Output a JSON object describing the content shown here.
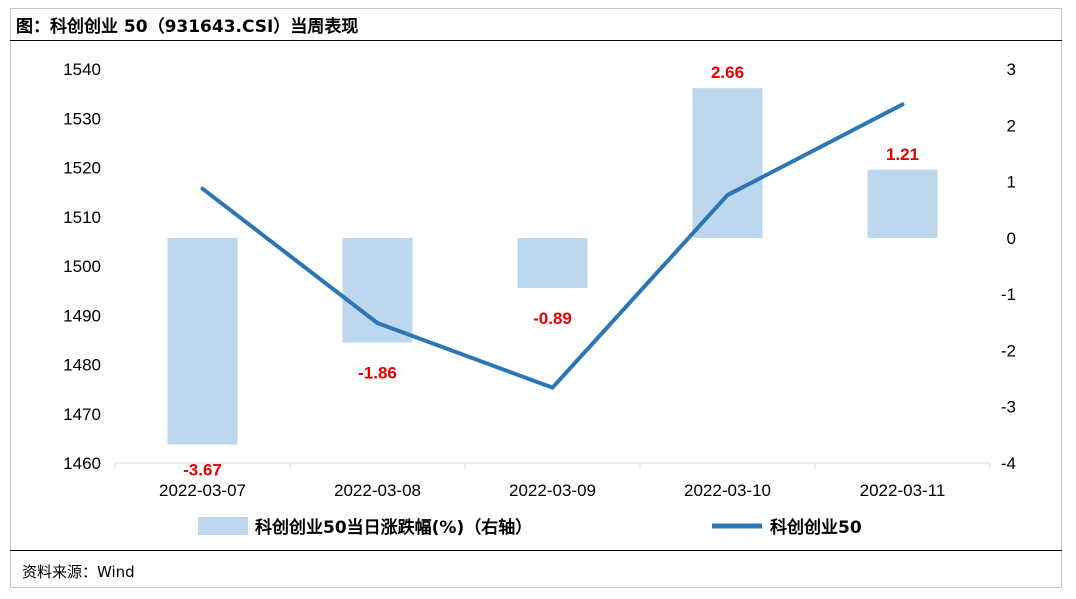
{
  "header": {
    "title": "图：科创创业 50（931643.CSI）当周表现"
  },
  "footer": {
    "source": "资料来源：Wind"
  },
  "chart_data": {
    "type": "bar+line",
    "categories": [
      "2022-03-07",
      "2022-03-08",
      "2022-03-09",
      "2022-03-10",
      "2022-03-11"
    ],
    "series": [
      {
        "name": "科创创业50当日涨跌幅(%)（右轴）",
        "type": "bar",
        "axis": "right",
        "values": [
          -3.67,
          -1.86,
          -0.89,
          2.66,
          1.21
        ],
        "color": "#bdd7ee"
      },
      {
        "name": "科创创业50",
        "type": "line",
        "axis": "left",
        "values": [
          1515.7,
          1488.4,
          1475.3,
          1514.4,
          1532.8
        ],
        "color": "#2e75b6"
      }
    ],
    "y_left": {
      "ylim": [
        1460,
        1540
      ],
      "ticks": [
        1460,
        1470,
        1480,
        1490,
        1500,
        1510,
        1520,
        1530,
        1540
      ]
    },
    "y_right": {
      "ylim": [
        -4,
        3
      ],
      "ticks": [
        -4,
        -3,
        -2,
        -1,
        0,
        1,
        2,
        3
      ]
    },
    "data_labels": [
      "-3.67",
      "-1.86",
      "-0.89",
      "2.66",
      "1.21"
    ],
    "label_color": "#e60000",
    "legend": {
      "position": "bottom"
    }
  }
}
